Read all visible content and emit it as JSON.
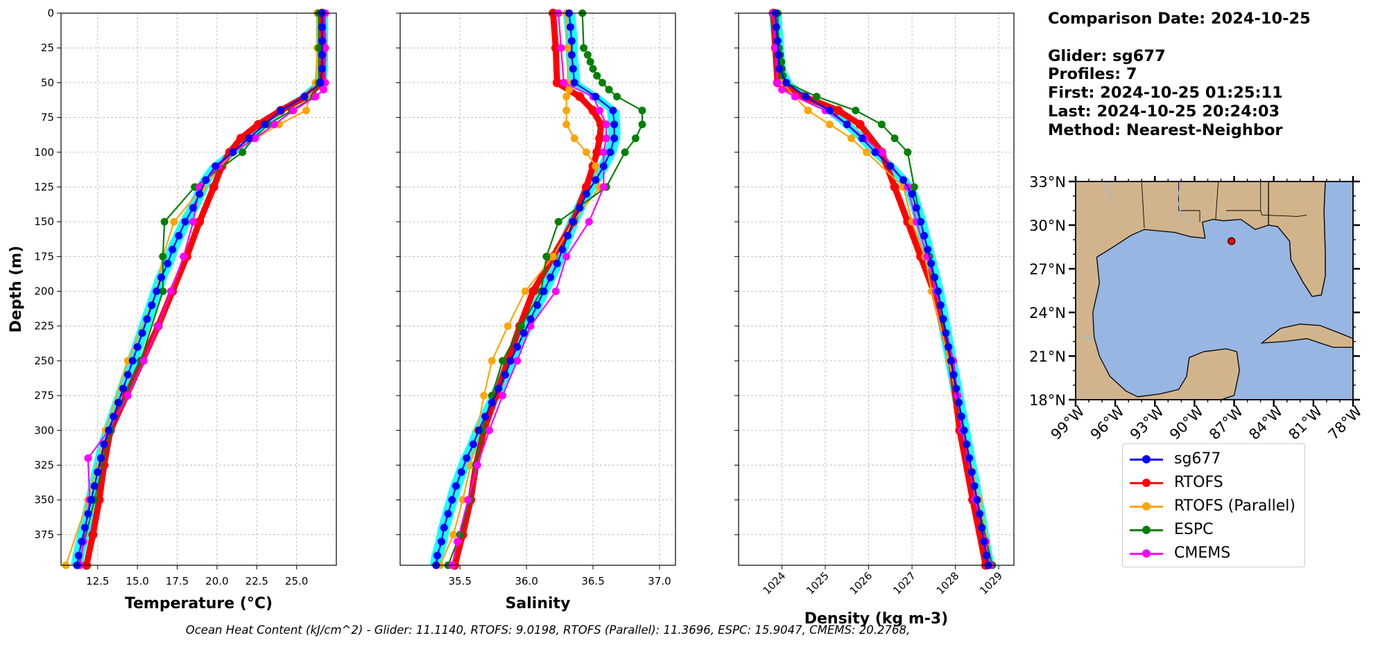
{
  "chart_data": [
    {
      "type": "line",
      "xlabel": "Temperature (°C)",
      "ylabel": "Depth (m)",
      "xlim": [
        10.2,
        27.5
      ],
      "ylim": [
        397,
        0
      ],
      "xticks": [
        "12.5",
        "15.0",
        "17.5",
        "20.0",
        "22.5",
        "25.0"
      ],
      "xtick_values": [
        12.5,
        15.0,
        17.5,
        20.0,
        22.5,
        25.0
      ],
      "yticks": [
        "0",
        "25",
        "50",
        "75",
        "100",
        "125",
        "150",
        "175",
        "200",
        "225",
        "250",
        "275",
        "300",
        "325",
        "350",
        "375"
      ],
      "grid": true,
      "series": [
        {
          "name": "sg677",
          "color": "#0000ff",
          "depth": [
            0,
            10,
            20,
            30,
            40,
            50,
            60,
            70,
            80,
            90,
            100,
            110,
            120,
            130,
            140,
            150,
            160,
            170,
            180,
            190,
            200,
            210,
            220,
            230,
            240,
            250,
            260,
            270,
            280,
            290,
            300,
            310,
            320,
            330,
            340,
            350,
            360,
            370,
            380,
            390,
            397
          ],
          "values": [
            26.6,
            26.6,
            26.6,
            26.6,
            26.6,
            26.5,
            25.5,
            24.0,
            23.0,
            22.0,
            21.0,
            19.9,
            19.3,
            18.9,
            18.5,
            18.0,
            17.6,
            17.2,
            16.9,
            16.5,
            16.2,
            15.9,
            15.6,
            15.3,
            15.0,
            14.7,
            14.4,
            14.1,
            13.8,
            13.5,
            13.2,
            12.9,
            12.7,
            12.5,
            12.3,
            12.1,
            11.9,
            11.7,
            11.5,
            11.3,
            11.2
          ]
        },
        {
          "name": "RTOFS",
          "color": "#ff0000",
          "depth": [
            0,
            25,
            50,
            60,
            70,
            80,
            90,
            100,
            110,
            125,
            150,
            175,
            200,
            225,
            250,
            275,
            300,
            325,
            350,
            375,
            397
          ],
          "values": [
            26.6,
            26.7,
            26.6,
            25.6,
            24.0,
            22.6,
            21.5,
            20.8,
            20.3,
            19.8,
            18.9,
            18.1,
            17.2,
            16.3,
            15.3,
            14.3,
            13.3,
            12.9,
            12.6,
            12.2,
            11.8
          ]
        },
        {
          "name": "RTOFS (Parallel)",
          "color": "#ffa500",
          "depth": [
            0,
            25,
            50,
            60,
            70,
            80,
            100,
            125,
            150,
            175,
            200,
            250,
            300,
            350,
            397
          ],
          "values": [
            26.3,
            26.3,
            26.2,
            25.8,
            25.6,
            23.9,
            21.0,
            19.1,
            17.3,
            16.6,
            16.2,
            14.4,
            13.0,
            11.9,
            10.5
          ]
        },
        {
          "name": "ESPC",
          "color": "#008000",
          "depth": [
            0,
            25,
            50,
            60,
            70,
            80,
            90,
            100,
            125,
            150,
            175,
            200,
            250,
            300,
            350,
            397
          ],
          "values": [
            26.4,
            26.4,
            26.4,
            26.1,
            24.7,
            23.2,
            22.3,
            21.6,
            18.6,
            16.7,
            16.6,
            16.6,
            15.2,
            13.3,
            12.3,
            11.3
          ]
        },
        {
          "name": "CMEMS",
          "color": "#ff00ff",
          "depth": [
            0,
            25,
            50,
            55,
            60,
            70,
            80,
            90,
            100,
            110,
            125,
            150,
            175,
            200,
            225,
            250,
            275,
            300,
            320,
            350,
            380,
            397
          ],
          "values": [
            26.8,
            26.8,
            26.8,
            26.7,
            26.2,
            24.8,
            23.6,
            22.4,
            21.0,
            20.1,
            18.9,
            18.5,
            17.9,
            17.1,
            16.3,
            15.4,
            14.4,
            13.2,
            11.9,
            12.0,
            11.6,
            11.4
          ]
        }
      ]
    },
    {
      "type": "line",
      "xlabel": "Salinity",
      "xlim": [
        35.05,
        37.12
      ],
      "ylim": [
        397,
        0
      ],
      "xticks": [
        "35.5",
        "36.0",
        "36.5",
        "37.0"
      ],
      "xtick_values": [
        35.5,
        36.0,
        36.5,
        37.0
      ],
      "grid": true,
      "series": [
        {
          "name": "sg677",
          "color": "#0000ff",
          "depth": [
            0,
            10,
            20,
            30,
            40,
            50,
            60,
            70,
            80,
            90,
            100,
            110,
            120,
            130,
            140,
            150,
            160,
            170,
            180,
            190,
            200,
            210,
            220,
            230,
            240,
            250,
            260,
            270,
            280,
            290,
            300,
            310,
            320,
            330,
            340,
            350,
            360,
            370,
            380,
            390,
            397
          ],
          "values": [
            36.32,
            36.33,
            36.34,
            36.34,
            36.35,
            36.36,
            36.52,
            36.65,
            36.66,
            36.66,
            36.63,
            36.58,
            36.52,
            36.45,
            36.4,
            36.35,
            36.31,
            36.27,
            36.23,
            36.18,
            36.13,
            36.08,
            36.03,
            35.98,
            35.93,
            35.88,
            35.84,
            35.79,
            35.74,
            35.69,
            35.64,
            35.6,
            35.55,
            35.51,
            35.47,
            35.44,
            35.41,
            35.38,
            35.36,
            35.33,
            35.32
          ]
        },
        {
          "name": "RTOFS",
          "color": "#ff0000",
          "depth": [
            0,
            25,
            50,
            60,
            70,
            80,
            90,
            100,
            110,
            125,
            150,
            175,
            200,
            225,
            250,
            275,
            300,
            325,
            350,
            375,
            397
          ],
          "values": [
            36.2,
            36.22,
            36.23,
            36.4,
            36.5,
            36.56,
            36.55,
            36.53,
            36.5,
            36.45,
            36.35,
            36.2,
            36.05,
            35.95,
            35.86,
            35.77,
            35.68,
            35.62,
            35.58,
            35.52,
            35.46
          ]
        },
        {
          "name": "RTOFS (Parallel)",
          "color": "#ffa500",
          "depth": [
            0,
            25,
            50,
            55,
            60,
            70,
            80,
            90,
            100,
            110,
            125,
            150,
            175,
            200,
            225,
            250,
            275,
            300,
            325,
            350,
            375,
            397
          ],
          "values": [
            36.3,
            36.31,
            36.31,
            36.32,
            36.3,
            36.3,
            36.3,
            36.36,
            36.45,
            36.52,
            36.55,
            36.35,
            36.2,
            35.99,
            35.86,
            35.74,
            35.68,
            35.63,
            35.58,
            35.52,
            35.45,
            35.35
          ]
        },
        {
          "name": "ESPC",
          "color": "#008000",
          "depth": [
            0,
            25,
            30,
            35,
            40,
            45,
            50,
            55,
            60,
            70,
            80,
            90,
            100,
            125,
            150,
            175,
            200,
            225,
            250,
            275,
            300,
            325,
            350,
            375,
            397
          ],
          "values": [
            36.42,
            36.43,
            36.46,
            36.48,
            36.5,
            36.53,
            36.57,
            36.62,
            36.68,
            36.87,
            36.87,
            36.82,
            36.74,
            36.6,
            36.24,
            36.15,
            36.11,
            35.96,
            35.82,
            35.74,
            35.67,
            35.62,
            35.57,
            35.5,
            35.41
          ]
        },
        {
          "name": "CMEMS",
          "color": "#ff00ff",
          "depth": [
            0,
            25,
            50,
            60,
            70,
            80,
            90,
            100,
            125,
            150,
            175,
            200,
            225,
            250,
            275,
            300,
            325,
            350,
            380,
            397
          ],
          "values": [
            36.24,
            36.26,
            36.28,
            36.5,
            36.55,
            36.6,
            36.6,
            36.58,
            36.58,
            36.47,
            36.3,
            36.22,
            36.03,
            35.93,
            35.82,
            35.72,
            35.63,
            35.56,
            35.48,
            35.44
          ]
        }
      ]
    },
    {
      "type": "line",
      "xlabel": "Density (kg m-3)",
      "xlim": [
        1023.0,
        1029.35
      ],
      "ylim": [
        397,
        0
      ],
      "xticks": [
        "1024",
        "1025",
        "1026",
        "1027",
        "1028",
        "1029"
      ],
      "xtick_values": [
        1024,
        1025,
        1026,
        1027,
        1028,
        1029
      ],
      "grid": true,
      "series": [
        {
          "name": "sg677",
          "color": "#0000ff",
          "depth": [
            0,
            10,
            20,
            30,
            40,
            50,
            60,
            70,
            80,
            90,
            100,
            110,
            120,
            130,
            140,
            150,
            160,
            170,
            180,
            190,
            200,
            210,
            220,
            230,
            240,
            250,
            260,
            270,
            280,
            290,
            300,
            310,
            320,
            330,
            340,
            350,
            360,
            370,
            380,
            390,
            397
          ],
          "values": [
            1023.85,
            1023.87,
            1023.9,
            1023.92,
            1023.94,
            1024.1,
            1024.55,
            1025.1,
            1025.5,
            1025.85,
            1026.15,
            1026.5,
            1026.8,
            1027.0,
            1027.1,
            1027.2,
            1027.28,
            1027.36,
            1027.44,
            1027.52,
            1027.6,
            1027.66,
            1027.72,
            1027.78,
            1027.84,
            1027.9,
            1027.96,
            1028.02,
            1028.08,
            1028.14,
            1028.2,
            1028.26,
            1028.32,
            1028.38,
            1028.44,
            1028.5,
            1028.56,
            1028.61,
            1028.66,
            1028.72,
            1028.76
          ]
        },
        {
          "name": "RTOFS",
          "color": "#ff0000",
          "depth": [
            0,
            25,
            50,
            60,
            70,
            80,
            100,
            125,
            150,
            175,
            200,
            250,
            300,
            350,
            397
          ],
          "values": [
            1023.8,
            1023.85,
            1023.9,
            1024.5,
            1025.3,
            1025.8,
            1026.3,
            1026.6,
            1026.9,
            1027.2,
            1027.5,
            1027.9,
            1028.1,
            1028.4,
            1028.7
          ]
        },
        {
          "name": "RTOFS (Parallel)",
          "color": "#ffa500",
          "depth": [
            0,
            25,
            50,
            60,
            70,
            80,
            90,
            100,
            125,
            150,
            175,
            200,
            250,
            300,
            350,
            397
          ],
          "values": [
            1023.9,
            1023.92,
            1024.0,
            1024.3,
            1024.6,
            1025.1,
            1025.6,
            1025.95,
            1026.8,
            1027.0,
            1027.3,
            1027.45,
            1027.85,
            1028.2,
            1028.55,
            1028.85
          ]
        },
        {
          "name": "ESPC",
          "color": "#008000",
          "depth": [
            0,
            25,
            30,
            35,
            40,
            45,
            50,
            60,
            70,
            80,
            90,
            100,
            125,
            150,
            175,
            200,
            250,
            300,
            350,
            397
          ],
          "values": [
            1023.9,
            1023.93,
            1023.96,
            1023.99,
            1024.0,
            1024.02,
            1024.1,
            1024.8,
            1025.7,
            1026.3,
            1026.6,
            1026.9,
            1027.05,
            1027.2,
            1027.4,
            1027.55,
            1027.9,
            1028.15,
            1028.5,
            1028.85
          ]
        },
        {
          "name": "CMEMS",
          "color": "#ff00ff",
          "depth": [
            0,
            25,
            50,
            55,
            60,
            70,
            80,
            90,
            100,
            125,
            150,
            175,
            200,
            250,
            275,
            300,
            320,
            350,
            380,
            397
          ],
          "values": [
            1023.8,
            1023.85,
            1023.9,
            1024.0,
            1024.3,
            1025.0,
            1025.5,
            1025.9,
            1026.3,
            1026.9,
            1027.1,
            1027.35,
            1027.55,
            1027.95,
            1028.05,
            1028.15,
            1028.3,
            1028.45,
            1028.7,
            1028.8
          ]
        }
      ]
    }
  ],
  "info": {
    "line1": "Comparison Date: 2024-10-25",
    "line2": "Glider: sg677",
    "line3": "Profiles: 7",
    "line4": "First: 2024-10-25 01:25:11",
    "line5": "Last: 2024-10-25 20:24:03",
    "line6": "Method: Nearest-Neighbor"
  },
  "map": {
    "lon_range": [
      -99,
      -78
    ],
    "lat_range": [
      18,
      33
    ],
    "lat_labels": [
      "33°N",
      "30°N",
      "27°N",
      "24°N",
      "21°N",
      "18°N"
    ],
    "lat_values": [
      33,
      30,
      27,
      24,
      21,
      18
    ],
    "lon_labels": [
      "99°W",
      "96°W",
      "93°W",
      "90°W",
      "87°W",
      "84°W",
      "81°W",
      "78°W"
    ],
    "lon_values": [
      -99,
      -96,
      -93,
      -90,
      -87,
      -84,
      -81,
      -78
    ],
    "glider_lon": -87.2,
    "glider_lat": 28.9,
    "land_color": "#d2b48c",
    "ocean_color": "#97b6e1",
    "marker_color": "#ff0000"
  },
  "legend": [
    {
      "label": "sg677",
      "color": "#0000ff"
    },
    {
      "label": "RTOFS",
      "color": "#ff0000"
    },
    {
      "label": "RTOFS (Parallel)",
      "color": "#ffa500"
    },
    {
      "label": "ESPC",
      "color": "#008000"
    },
    {
      "label": "CMEMS",
      "color": "#ff00ff"
    }
  ],
  "glider_band_color": "#00ffff",
  "caption": "Ocean Heat Content (kJ/cm^2) - Glider: 11.1140,  RTOFS: 9.0198,  RTOFS (Parallel): 11.3696,  ESPC: 15.9047,  CMEMS: 20.2768,"
}
